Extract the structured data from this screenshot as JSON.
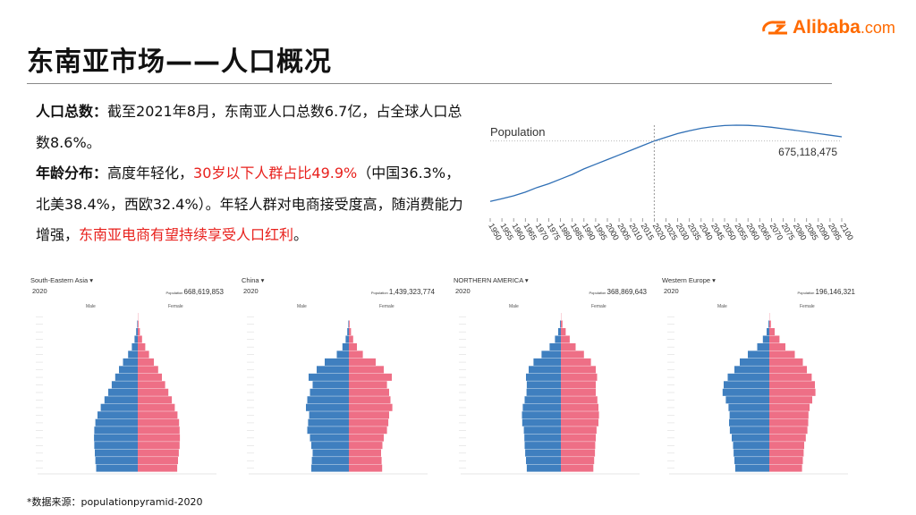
{
  "header": {
    "title": "东南亚市场——人口概况",
    "logo_brand": "Alibaba",
    "logo_domain": ".com"
  },
  "body_text": {
    "p1_label": "人口总数：",
    "p1_text": "截至2021年8月，东南亚人口总数6.7亿，占全球人口总数8.6%。",
    "p2_label": "年龄分布：",
    "p2_text_a": "高度年轻化，",
    "p2_highlight_a": "30岁以下人群占比49.9%",
    "p2_text_b": "（中国36.3%，北美38.4%，西欧32.4%）。年轻人群对电商接受度高，随消费能力增强，",
    "p2_highlight_b": "东南亚电商有望持续享受人口红利",
    "p2_text_c": "。"
  },
  "footer": {
    "source_note": "*数据来源：populationpyramid-2020"
  },
  "colors": {
    "accent_red": "#e8211d",
    "brand_orange": "#ff6a00",
    "male": "#3f7fbf",
    "female": "#ee6f86",
    "line": "#2f6fb5"
  },
  "chart_data": [
    {
      "type": "line",
      "title": "Population",
      "value_label": "675,118,475",
      "x": [
        1950,
        1955,
        1960,
        1965,
        1970,
        1975,
        1980,
        1985,
        1990,
        1995,
        2000,
        2005,
        2010,
        2015,
        2020,
        2025,
        2030,
        2035,
        2040,
        2045,
        2050,
        2055,
        2060,
        2065,
        2070,
        2075,
        2080,
        2085,
        2090,
        2095,
        2100
      ],
      "y_relative": [
        0.18,
        0.21,
        0.24,
        0.28,
        0.33,
        0.37,
        0.42,
        0.47,
        0.53,
        0.58,
        0.63,
        0.68,
        0.73,
        0.78,
        0.83,
        0.87,
        0.91,
        0.94,
        0.966,
        0.985,
        0.996,
        1.0,
        0.998,
        0.99,
        0.978,
        0.962,
        0.945,
        0.928,
        0.91,
        0.892,
        0.875
      ],
      "marker_year": 2020
    },
    {
      "type": "bar",
      "title": "South-Eastern Asia",
      "year": "2020",
      "population_label": "Population",
      "population": "668,619,853",
      "male_label": "Male",
      "female_label": "Female",
      "male": [
        0.0,
        0.02,
        0.06,
        0.12,
        0.22,
        0.36,
        0.55,
        0.7,
        0.84,
        0.97,
        1.1,
        1.24,
        1.38,
        1.5,
        1.58,
        1.62,
        1.63,
        1.62,
        1.6,
        1.58,
        1.55
      ],
      "female": [
        0.01,
        0.03,
        0.08,
        0.16,
        0.28,
        0.42,
        0.6,
        0.76,
        0.9,
        1.02,
        1.14,
        1.27,
        1.38,
        1.48,
        1.54,
        1.56,
        1.57,
        1.56,
        1.53,
        1.5,
        1.47
      ]
    },
    {
      "type": "bar",
      "title": "China",
      "year": "2020",
      "population_label": "Population",
      "population": "1,439,323,774",
      "male_label": "Male",
      "female_label": "Female",
      "male": [
        0.0,
        0.02,
        0.06,
        0.12,
        0.24,
        0.45,
        0.9,
        1.2,
        1.5,
        1.35,
        1.45,
        1.55,
        1.6,
        1.48,
        1.52,
        1.55,
        1.45,
        1.4,
        1.35,
        1.38,
        1.4
      ],
      "female": [
        0.0,
        0.03,
        0.08,
        0.16,
        0.3,
        0.52,
        1.0,
        1.3,
        1.6,
        1.42,
        1.5,
        1.55,
        1.62,
        1.5,
        1.47,
        1.42,
        1.3,
        1.25,
        1.2,
        1.22,
        1.24
      ]
    },
    {
      "type": "bar",
      "title": "NORTHERN AMERICA",
      "year": "2020",
      "population_label": "Population",
      "population": "368,869,643",
      "male_label": "Male",
      "female_label": "Female",
      "male": [
        0.0,
        0.03,
        0.1,
        0.22,
        0.42,
        0.72,
        1.02,
        1.2,
        1.3,
        1.27,
        1.28,
        1.35,
        1.42,
        1.45,
        1.44,
        1.38,
        1.36,
        1.35,
        1.33,
        1.3,
        1.27
      ],
      "female": [
        0.01,
        0.06,
        0.18,
        0.33,
        0.55,
        0.86,
        1.12,
        1.3,
        1.35,
        1.3,
        1.3,
        1.36,
        1.4,
        1.42,
        1.4,
        1.33,
        1.3,
        1.28,
        1.27,
        1.24,
        1.21
      ]
    },
    {
      "type": "bar",
      "title": "Western Europe",
      "year": "2020",
      "population_label": "Population",
      "population": "196,146,321",
      "male_label": "Male",
      "female_label": "Female",
      "male": [
        0.0,
        0.03,
        0.1,
        0.24,
        0.45,
        0.8,
        1.1,
        1.3,
        1.55,
        1.7,
        1.74,
        1.62,
        1.52,
        1.48,
        1.5,
        1.47,
        1.4,
        1.35,
        1.33,
        1.3,
        1.27
      ],
      "female": [
        0.01,
        0.06,
        0.2,
        0.38,
        0.6,
        0.95,
        1.25,
        1.4,
        1.58,
        1.7,
        1.72,
        1.6,
        1.5,
        1.46,
        1.45,
        1.42,
        1.36,
        1.3,
        1.28,
        1.25,
        1.22
      ]
    }
  ]
}
